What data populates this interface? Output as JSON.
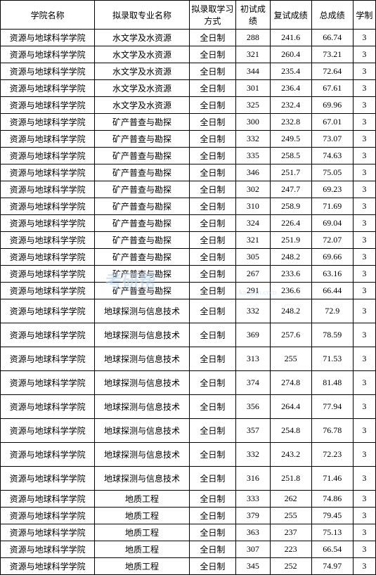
{
  "watermark": {
    "main": "考研帮",
    "sub": "kaoyan.com"
  },
  "columns": [
    {
      "key": "school",
      "label": "学院名称"
    },
    {
      "key": "major",
      "label": "拟录取专业名称"
    },
    {
      "key": "mode",
      "label": "拟录取学习方式"
    },
    {
      "key": "prelim",
      "label": "初试成绩"
    },
    {
      "key": "retest",
      "label": "复试成绩"
    },
    {
      "key": "total",
      "label": "总成绩"
    },
    {
      "key": "years",
      "label": "学制"
    }
  ],
  "rows": [
    {
      "school": "资源与地球科学学院",
      "major": "水文学及水资源",
      "mode": "全日制",
      "prelim": "288",
      "retest": "241.6",
      "total": "66.74",
      "years": "3",
      "tall": false
    },
    {
      "school": "资源与地球科学学院",
      "major": "水文学及水资源",
      "mode": "全日制",
      "prelim": "321",
      "retest": "260.4",
      "total": "73.21",
      "years": "3",
      "tall": false
    },
    {
      "school": "资源与地球科学学院",
      "major": "水文学及水资源",
      "mode": "全日制",
      "prelim": "344",
      "retest": "235.4",
      "total": "72.64",
      "years": "3",
      "tall": false
    },
    {
      "school": "资源与地球科学学院",
      "major": "水文学及水资源",
      "mode": "全日制",
      "prelim": "301",
      "retest": "236.4",
      "total": "67.61",
      "years": "3",
      "tall": false
    },
    {
      "school": "资源与地球科学学院",
      "major": "水文学及水资源",
      "mode": "全日制",
      "prelim": "325",
      "retest": "232.4",
      "total": "69.96",
      "years": "3",
      "tall": false
    },
    {
      "school": "资源与地球科学学院",
      "major": "矿产普查与勘探",
      "mode": "全日制",
      "prelim": "300",
      "retest": "232.8",
      "total": "67.01",
      "years": "3",
      "tall": false
    },
    {
      "school": "资源与地球科学学院",
      "major": "矿产普查与勘探",
      "mode": "全日制",
      "prelim": "332",
      "retest": "249.5",
      "total": "73.07",
      "years": "3",
      "tall": false
    },
    {
      "school": "资源与地球科学学院",
      "major": "矿产普查与勘探",
      "mode": "全日制",
      "prelim": "335",
      "retest": "258.5",
      "total": "74.63",
      "years": "3",
      "tall": false
    },
    {
      "school": "资源与地球科学学院",
      "major": "矿产普查与勘探",
      "mode": "全日制",
      "prelim": "346",
      "retest": "251.7",
      "total": "75.05",
      "years": "3",
      "tall": false
    },
    {
      "school": "资源与地球科学学院",
      "major": "矿产普查与勘探",
      "mode": "全日制",
      "prelim": "302",
      "retest": "247.7",
      "total": "69.23",
      "years": "3",
      "tall": false
    },
    {
      "school": "资源与地球科学学院",
      "major": "矿产普查与勘探",
      "mode": "全日制",
      "prelim": "310",
      "retest": "258.9",
      "total": "71.69",
      "years": "3",
      "tall": false
    },
    {
      "school": "资源与地球科学学院",
      "major": "矿产普查与勘探",
      "mode": "全日制",
      "prelim": "324",
      "retest": "226.4",
      "total": "69.04",
      "years": "3",
      "tall": false
    },
    {
      "school": "资源与地球科学学院",
      "major": "矿产普查与勘探",
      "mode": "全日制",
      "prelim": "321",
      "retest": "251.9",
      "total": "72.07",
      "years": "3",
      "tall": false
    },
    {
      "school": "资源与地球科学学院",
      "major": "矿产普查与勘探",
      "mode": "全日制",
      "prelim": "305",
      "retest": "248.2",
      "total": "69.66",
      "years": "3",
      "tall": false
    },
    {
      "school": "资源与地球科学学院",
      "major": "矿产普查与勘探",
      "mode": "全日制",
      "prelim": "267",
      "retest": "233.6",
      "total": "63.16",
      "years": "3",
      "tall": false
    },
    {
      "school": "资源与地球科学学院",
      "major": "矿产普查与勘探",
      "mode": "全日制",
      "prelim": "291",
      "retest": "236.6",
      "total": "66.44",
      "years": "3",
      "tall": false
    },
    {
      "school": "资源与地球科学学院",
      "major": "地球探测与信息技术",
      "mode": "全日制",
      "prelim": "332",
      "retest": "248.2",
      "total": "72.9",
      "years": "3",
      "tall": true
    },
    {
      "school": "资源与地球科学学院",
      "major": "地球探测与信息技术",
      "mode": "全日制",
      "prelim": "369",
      "retest": "257.6",
      "total": "78.59",
      "years": "3",
      "tall": true
    },
    {
      "school": "资源与地球科学学院",
      "major": "地球探测与信息技术",
      "mode": "全日制",
      "prelim": "313",
      "retest": "255",
      "total": "71.53",
      "years": "3",
      "tall": true
    },
    {
      "school": "资源与地球科学学院",
      "major": "地球探测与信息技术",
      "mode": "全日制",
      "prelim": "374",
      "retest": "274.8",
      "total": "81.48",
      "years": "3",
      "tall": true
    },
    {
      "school": "资源与地球科学学院",
      "major": "地球探测与信息技术",
      "mode": "全日制",
      "prelim": "356",
      "retest": "264.4",
      "total": "77.94",
      "years": "3",
      "tall": true
    },
    {
      "school": "资源与地球科学学院",
      "major": "地球探测与信息技术",
      "mode": "全日制",
      "prelim": "357",
      "retest": "254.8",
      "total": "76.78",
      "years": "3",
      "tall": true
    },
    {
      "school": "资源与地球科学学院",
      "major": "地球探测与信息技术",
      "mode": "全日制",
      "prelim": "332",
      "retest": "243.2",
      "total": "72.23",
      "years": "3",
      "tall": true
    },
    {
      "school": "资源与地球科学学院",
      "major": "地球探测与信息技术",
      "mode": "全日制",
      "prelim": "316",
      "retest": "251.8",
      "total": "71.46",
      "years": "3",
      "tall": true
    },
    {
      "school": "资源与地球科学学院",
      "major": "地质工程",
      "mode": "全日制",
      "prelim": "333",
      "retest": "262",
      "total": "74.86",
      "years": "3",
      "tall": false
    },
    {
      "school": "资源与地球科学学院",
      "major": "地质工程",
      "mode": "全日制",
      "prelim": "379",
      "retest": "255",
      "total": "79.45",
      "years": "3",
      "tall": false
    },
    {
      "school": "资源与地球科学学院",
      "major": "地质工程",
      "mode": "全日制",
      "prelim": "363",
      "retest": "237",
      "total": "75.13",
      "years": "3",
      "tall": false
    },
    {
      "school": "资源与地球科学学院",
      "major": "地质工程",
      "mode": "全日制",
      "prelim": "307",
      "retest": "223",
      "total": "66.54",
      "years": "3",
      "tall": false
    },
    {
      "school": "资源与地球科学学院",
      "major": "地质工程",
      "mode": "全日制",
      "prelim": "345",
      "retest": "252",
      "total": "74.97",
      "years": "3",
      "tall": false
    }
  ]
}
